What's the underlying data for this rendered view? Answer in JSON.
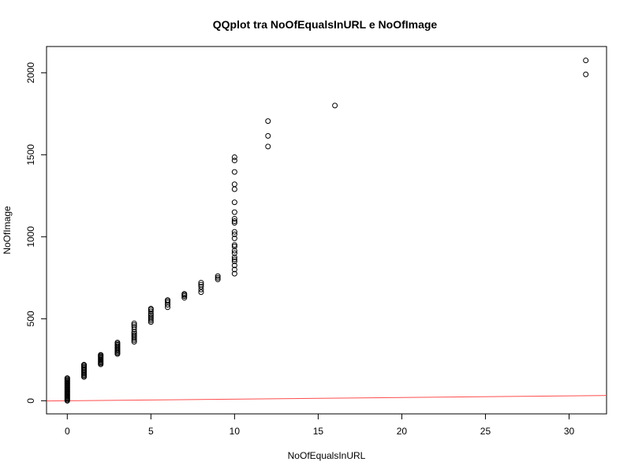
{
  "chart_data": {
    "type": "scatter",
    "title": "QQplot tra NoOfEqualsInURL e NoOfImage",
    "xlabel": "NoOfEqualsInURL",
    "ylabel": "NoOfImage",
    "xlim": [
      -1.24,
      32.24
    ],
    "ylim": [
      -80,
      2160
    ],
    "x_ticks": [
      0,
      5,
      10,
      15,
      20,
      25,
      30
    ],
    "y_ticks": [
      0,
      500,
      1000,
      1500,
      2000
    ],
    "grid": false,
    "legend": "none",
    "point_color": "#000000",
    "line_color": "#ff4d4d",
    "reference_line": {
      "intercept": 0,
      "slope": 1
    },
    "points": [
      {
        "x": 0,
        "y": 0
      },
      {
        "x": 0,
        "y": 6
      },
      {
        "x": 0,
        "y": 12
      },
      {
        "x": 0,
        "y": 18
      },
      {
        "x": 0,
        "y": 24
      },
      {
        "x": 0,
        "y": 30
      },
      {
        "x": 0,
        "y": 36
      },
      {
        "x": 0,
        "y": 42
      },
      {
        "x": 0,
        "y": 48
      },
      {
        "x": 0,
        "y": 54
      },
      {
        "x": 0,
        "y": 60
      },
      {
        "x": 0,
        "y": 66
      },
      {
        "x": 0,
        "y": 72
      },
      {
        "x": 0,
        "y": 78
      },
      {
        "x": 0,
        "y": 84
      },
      {
        "x": 0,
        "y": 90
      },
      {
        "x": 0,
        "y": 96
      },
      {
        "x": 0,
        "y": 102
      },
      {
        "x": 0,
        "y": 108
      },
      {
        "x": 0,
        "y": 114
      },
      {
        "x": 0,
        "y": 120
      },
      {
        "x": 0,
        "y": 126
      },
      {
        "x": 0,
        "y": 132
      },
      {
        "x": 0,
        "y": 138
      },
      {
        "x": 1,
        "y": 145
      },
      {
        "x": 1,
        "y": 152
      },
      {
        "x": 1,
        "y": 159
      },
      {
        "x": 1,
        "y": 166
      },
      {
        "x": 1,
        "y": 173
      },
      {
        "x": 1,
        "y": 180
      },
      {
        "x": 1,
        "y": 187
      },
      {
        "x": 1,
        "y": 194
      },
      {
        "x": 1,
        "y": 201
      },
      {
        "x": 1,
        "y": 208
      },
      {
        "x": 1,
        "y": 215
      },
      {
        "x": 1,
        "y": 220
      },
      {
        "x": 2,
        "y": 222
      },
      {
        "x": 2,
        "y": 228
      },
      {
        "x": 2,
        "y": 234
      },
      {
        "x": 2,
        "y": 240
      },
      {
        "x": 2,
        "y": 246
      },
      {
        "x": 2,
        "y": 252
      },
      {
        "x": 2,
        "y": 258
      },
      {
        "x": 2,
        "y": 264
      },
      {
        "x": 2,
        "y": 270
      },
      {
        "x": 2,
        "y": 276
      },
      {
        "x": 2,
        "y": 280
      },
      {
        "x": 3,
        "y": 285
      },
      {
        "x": 3,
        "y": 292
      },
      {
        "x": 3,
        "y": 299
      },
      {
        "x": 3,
        "y": 306
      },
      {
        "x": 3,
        "y": 313
      },
      {
        "x": 3,
        "y": 320
      },
      {
        "x": 3,
        "y": 327
      },
      {
        "x": 3,
        "y": 334
      },
      {
        "x": 3,
        "y": 341
      },
      {
        "x": 3,
        "y": 348
      },
      {
        "x": 3,
        "y": 355
      },
      {
        "x": 4,
        "y": 360
      },
      {
        "x": 4,
        "y": 370
      },
      {
        "x": 4,
        "y": 380
      },
      {
        "x": 4,
        "y": 390
      },
      {
        "x": 4,
        "y": 400
      },
      {
        "x": 4,
        "y": 410
      },
      {
        "x": 4,
        "y": 420
      },
      {
        "x": 4,
        "y": 435
      },
      {
        "x": 4,
        "y": 450
      },
      {
        "x": 4,
        "y": 462
      },
      {
        "x": 4,
        "y": 472
      },
      {
        "x": 5,
        "y": 480
      },
      {
        "x": 5,
        "y": 490
      },
      {
        "x": 5,
        "y": 500
      },
      {
        "x": 5,
        "y": 510
      },
      {
        "x": 5,
        "y": 520
      },
      {
        "x": 5,
        "y": 530
      },
      {
        "x": 5,
        "y": 545
      },
      {
        "x": 5,
        "y": 555
      },
      {
        "x": 5,
        "y": 562
      },
      {
        "x": 6,
        "y": 570
      },
      {
        "x": 6,
        "y": 585
      },
      {
        "x": 6,
        "y": 598
      },
      {
        "x": 6,
        "y": 607
      },
      {
        "x": 6,
        "y": 614
      },
      {
        "x": 7,
        "y": 628
      },
      {
        "x": 7,
        "y": 638
      },
      {
        "x": 7,
        "y": 646
      },
      {
        "x": 7,
        "y": 652
      },
      {
        "x": 8,
        "y": 662
      },
      {
        "x": 8,
        "y": 678
      },
      {
        "x": 8,
        "y": 695
      },
      {
        "x": 8,
        "y": 708
      },
      {
        "x": 8,
        "y": 720
      },
      {
        "x": 9,
        "y": 740
      },
      {
        "x": 9,
        "y": 750
      },
      {
        "x": 9,
        "y": 760
      },
      {
        "x": 10,
        "y": 775
      },
      {
        "x": 10,
        "y": 800
      },
      {
        "x": 10,
        "y": 825
      },
      {
        "x": 10,
        "y": 850
      },
      {
        "x": 10,
        "y": 862
      },
      {
        "x": 10,
        "y": 875
      },
      {
        "x": 10,
        "y": 900
      },
      {
        "x": 10,
        "y": 915
      },
      {
        "x": 10,
        "y": 940
      },
      {
        "x": 10,
        "y": 950
      },
      {
        "x": 10,
        "y": 990
      },
      {
        "x": 10,
        "y": 1015
      },
      {
        "x": 10,
        "y": 1030
      },
      {
        "x": 10,
        "y": 1085
      },
      {
        "x": 10,
        "y": 1095
      },
      {
        "x": 10,
        "y": 1110
      },
      {
        "x": 10,
        "y": 1150
      },
      {
        "x": 10,
        "y": 1210
      },
      {
        "x": 10,
        "y": 1290
      },
      {
        "x": 10,
        "y": 1320
      },
      {
        "x": 10,
        "y": 1395
      },
      {
        "x": 10,
        "y": 1465
      },
      {
        "x": 10,
        "y": 1485
      },
      {
        "x": 12,
        "y": 1550
      },
      {
        "x": 12,
        "y": 1615
      },
      {
        "x": 12,
        "y": 1705
      },
      {
        "x": 16,
        "y": 1800
      },
      {
        "x": 31,
        "y": 1990
      },
      {
        "x": 31,
        "y": 2075
      }
    ]
  }
}
